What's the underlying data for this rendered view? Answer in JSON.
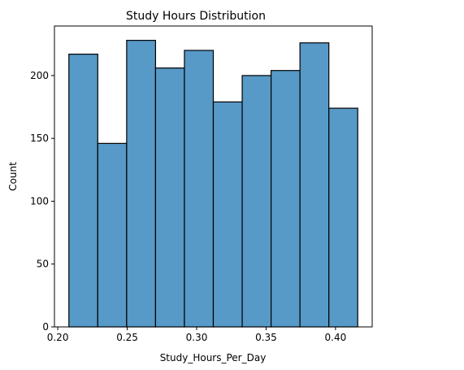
{
  "chart_data": {
    "type": "bar",
    "title": "Study Hours Distribution",
    "xlabel": "Study_Hours_Per_Day",
    "ylabel": "Count",
    "bin_edges": [
      0.208,
      0.2288,
      0.2496,
      0.2704,
      0.2912,
      0.312,
      0.3328,
      0.3536,
      0.3744,
      0.3952,
      0.416
    ],
    "values": [
      217,
      146,
      228,
      206,
      220,
      179,
      200,
      204,
      226,
      174
    ],
    "xlim": [
      0.1976,
      0.4264
    ],
    "ylim": [
      0,
      239.4
    ],
    "xticks": [
      0.2,
      0.25,
      0.3,
      0.35,
      0.4
    ],
    "xtick_labels": [
      "0.20",
      "0.25",
      "0.30",
      "0.35",
      "0.40"
    ],
    "yticks": [
      0,
      50,
      100,
      150,
      200
    ],
    "ytick_labels": [
      "0",
      "50",
      "100",
      "150",
      "200"
    ],
    "bar_color": "#5799c7",
    "edge_color": "#000000",
    "grid": false,
    "legend": "none"
  }
}
